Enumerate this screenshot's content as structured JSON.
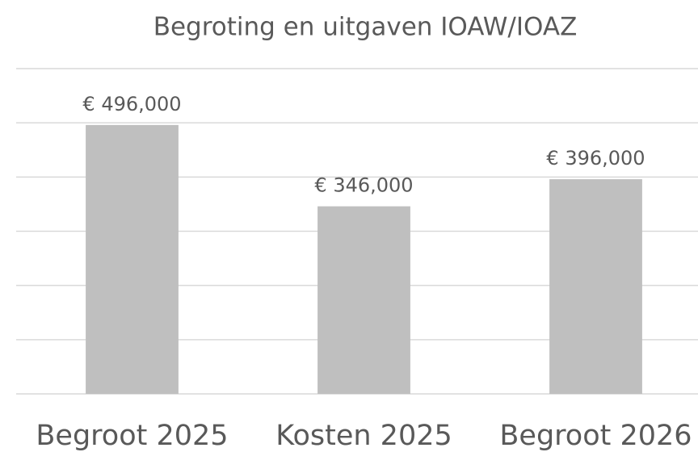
{
  "chart_data": {
    "type": "bar",
    "title": "Begroting en uitgaven IOAW/IOAZ",
    "categories": [
      "Begroot 2025",
      "Kosten 2025",
      "Begroot 2026"
    ],
    "values": [
      496000,
      346000,
      396000
    ],
    "value_labels": [
      "€ 496,000",
      "€ 346,000",
      "€ 396,000"
    ],
    "color": "#bfbfbf",
    "ylim": [
      0,
      600000
    ],
    "yticks": [
      0,
      100000,
      200000,
      300000,
      400000,
      500000,
      600000
    ],
    "grid": true
  }
}
